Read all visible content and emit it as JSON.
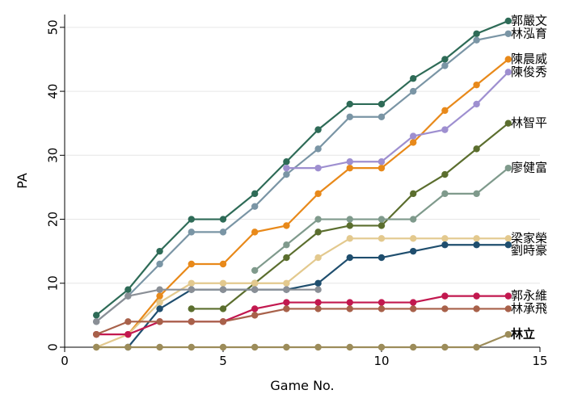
{
  "chart_data": {
    "type": "line",
    "xlabel": "Game No.",
    "ylabel": "PA",
    "xlim": [
      0,
      15
    ],
    "ylim": [
      0,
      52
    ],
    "xticks": [
      0,
      5,
      10,
      15
    ],
    "yticks": [
      0,
      10,
      20,
      30,
      40,
      50
    ],
    "grid": true,
    "x": [
      1,
      2,
      3,
      4,
      5,
      6,
      7,
      8,
      9,
      10,
      11,
      12,
      13,
      14
    ],
    "series": [
      {
        "name": "郭嚴文",
        "color": "#2e6b57",
        "values": [
          5,
          9,
          15,
          20,
          20,
          24,
          29,
          34,
          38,
          38,
          42,
          45,
          49,
          51
        ],
        "bold": false
      },
      {
        "name": "林泓育",
        "color": "#7a95a5",
        "values": [
          4,
          8,
          13,
          18,
          18,
          22,
          27,
          31,
          36,
          36,
          40,
          44,
          48,
          49
        ],
        "bold": false
      },
      {
        "name": "陳晨威",
        "color": "#e8891a",
        "values": [
          null,
          2,
          8,
          13,
          13,
          18,
          19,
          24,
          28,
          28,
          32,
          37,
          41,
          45
        ],
        "bold": false
      },
      {
        "name": "陳俊秀",
        "color": "#9e8fd0",
        "values": [
          null,
          null,
          null,
          null,
          null,
          null,
          28,
          28,
          29,
          29,
          33,
          34,
          38,
          43
        ],
        "bold": false
      },
      {
        "name": "林智平",
        "color": "#5b6e2e",
        "values": [
          null,
          null,
          null,
          6,
          6,
          10,
          14,
          18,
          19,
          19,
          24,
          27,
          31,
          35
        ],
        "bold": false
      },
      {
        "name": "廖健富",
        "color": "#7f9a8c",
        "values": [
          null,
          null,
          null,
          null,
          null,
          12,
          16,
          20,
          20,
          20,
          20,
          24,
          24,
          28
        ],
        "bold": false
      },
      {
        "name": "梁家榮",
        "color": "#e3c98e",
        "values": [
          0,
          2,
          7,
          10,
          10,
          10,
          10,
          14,
          17,
          17,
          17,
          17,
          17,
          17
        ],
        "bold": false
      },
      {
        "name": "劉時豪",
        "color": "#1f4e6e",
        "values": [
          null,
          0,
          6,
          9,
          9,
          9,
          9,
          10,
          14,
          14,
          15,
          16,
          16,
          16
        ],
        "bold": false
      },
      {
        "name": "郭永維",
        "color": "#c2184f",
        "values": [
          2,
          2,
          4,
          4,
          4,
          6,
          7,
          7,
          7,
          7,
          7,
          8,
          8,
          8
        ],
        "bold": false
      },
      {
        "name": "林承飛",
        "color": "#a8614a",
        "values": [
          2,
          4,
          4,
          4,
          4,
          5,
          6,
          6,
          6,
          6,
          6,
          6,
          6,
          6
        ],
        "bold": false
      },
      {
        "name": "林立",
        "color": "#9c8c5a",
        "values": [
          0,
          0,
          0,
          0,
          0,
          0,
          0,
          0,
          0,
          0,
          0,
          0,
          0,
          2
        ],
        "bold": true
      },
      {
        "name": "",
        "color": "#8a8f96",
        "values": [
          4,
          8,
          9,
          9,
          9,
          9,
          9,
          9,
          null,
          null,
          null,
          null,
          null,
          null
        ],
        "bold": false
      }
    ]
  }
}
